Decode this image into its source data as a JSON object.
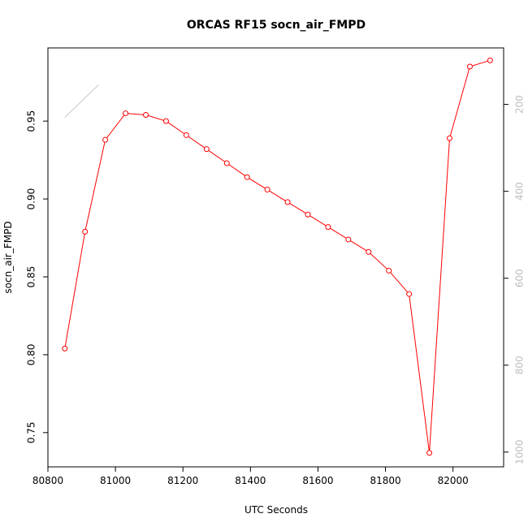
{
  "chart_data": {
    "type": "line",
    "title": "ORCAS RF15 socn_air_FMPD",
    "xlabel": "UTC Seconds",
    "ylabel": "socn_air_FMPD",
    "xlim": [
      80800,
      82150
    ],
    "ylim": [
      0.728,
      0.997
    ],
    "x_ticks": [
      80800,
      81000,
      81200,
      81400,
      81600,
      81800,
      82000
    ],
    "y_ticks": [
      0.75,
      0.8,
      0.85,
      0.9,
      0.95
    ],
    "right_axis": {
      "ticks": [
        200,
        400,
        600,
        800,
        1000
      ],
      "color": "#bdbdbd",
      "reversed": true,
      "range": [
        70,
        1034
      ]
    },
    "grid": false,
    "series": [
      {
        "color": "#ff0000",
        "marker": "open-circle",
        "x": [
          80850,
          80910,
          80970,
          81030,
          81090,
          81150,
          81210,
          81270,
          81330,
          81390,
          81450,
          81510,
          81570,
          81630,
          81690,
          81750,
          81810,
          81870,
          81930,
          81990,
          82050,
          82110
        ],
        "y": [
          0.804,
          0.879,
          0.938,
          0.955,
          0.954,
          0.95,
          0.941,
          0.932,
          0.923,
          0.914,
          0.906,
          0.898,
          0.89,
          0.882,
          0.874,
          0.866,
          0.854,
          0.839,
          0.737,
          0.939,
          0.985,
          0.989
        ]
      },
      {
        "color": "#c8c8c8",
        "marker": "none",
        "axis": "right",
        "x": [
          80850,
          80950
        ],
        "y": [
          230,
          155
        ]
      }
    ]
  }
}
